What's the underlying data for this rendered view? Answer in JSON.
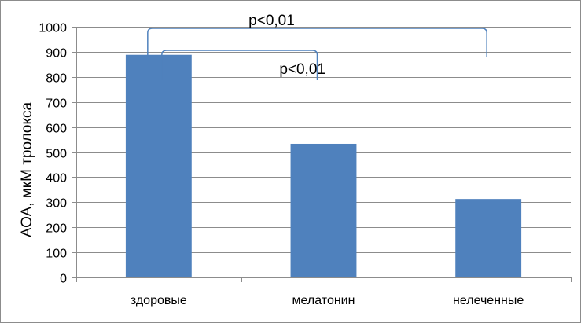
{
  "chart_data": {
    "type": "bar",
    "title": "",
    "xlabel": "",
    "ylabel": "АОА, мкМ тролокса",
    "categories": [
      "здоровые",
      "мелатонин",
      "нелеченные"
    ],
    "values": [
      888,
      533,
      313
    ],
    "ylim": [
      0,
      1000
    ],
    "yticks": [
      0,
      100,
      200,
      300,
      400,
      500,
      600,
      700,
      800,
      900,
      1000
    ],
    "grid": true,
    "legend": "none",
    "bar_color": "#4f81bd",
    "annotations": [
      {
        "text": "p<0,01",
        "from_category": "здоровые",
        "to_category": "нелеченные"
      },
      {
        "text": "p<0,01",
        "from_category": "здоровые",
        "to_category": "мелатонин"
      }
    ]
  }
}
